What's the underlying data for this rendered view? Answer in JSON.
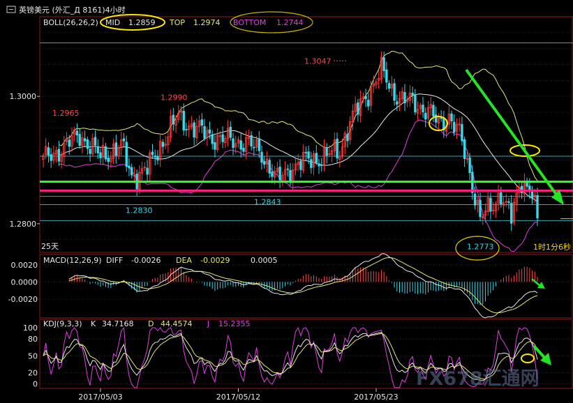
{
  "header": {
    "window_title": "英镑美元 (外汇_Д 8161)4小时",
    "period_label": "25天",
    "countdown": "1时1分6秒"
  },
  "indicators": {
    "boll": {
      "name": "BOLL(26,26,2)",
      "mid_label": "MID",
      "mid_value": "1.2859",
      "top_label": "TOP",
      "top_value": "1.2974",
      "bottom_label": "BOTTOM",
      "bottom_value": "1.2744"
    },
    "macd": {
      "name": "MACD(12,26,9)",
      "diff_label": "DIFF",
      "diff_value": "-0.0026",
      "dea_label": "DEA",
      "dea_value": "-0.0029",
      "macd_value": "0.0005"
    },
    "kdj": {
      "name": "KDJ(9,3,3)",
      "k_label": "K",
      "k_value": "34.7168",
      "d_label": "D",
      "d_value": "44.4574",
      "j_label": "J",
      "j_value": "15.2355"
    }
  },
  "colors": {
    "background": "#000000",
    "up_candle": "#ff3c3c",
    "down_candle": "#3cd8e8",
    "boll_band": "#e8e878",
    "boll_mid": "#e8e8e8",
    "boll_bottom": "#e040e0",
    "support_line": "#30ff30",
    "resistance_line": "#ff2080",
    "grid_dotted": "#7a1010",
    "highlight_circle": "#ffe800",
    "arrow": "#22e622",
    "watermark": "#5a6a90"
  },
  "watermark": "FX678汇通网",
  "chart_data": [
    {
      "type": "candlestick",
      "panel": "price",
      "y_tick_labels": [
        "1.3000",
        "1.2800"
      ],
      "y_ticks": [
        1.3,
        1.28
      ],
      "ylim": [
        1.2755,
        1.3125
      ],
      "horizontal_lines": [
        1.3084,
        1.2906,
        1.2843,
        1.283,
        1.2805
      ],
      "support_line": 1.2866,
      "resistance_line": 1.2852,
      "annotations": [
        {
          "text": "1.2965",
          "value": 1.2965,
          "kind": "high"
        },
        {
          "text": "1.2990",
          "value": 1.299,
          "kind": "high"
        },
        {
          "text": "1.3047",
          "value": 1.3047,
          "kind": "high"
        },
        {
          "text": "1.2830",
          "value": 1.283,
          "kind": "low"
        },
        {
          "text": "1.2843",
          "value": 1.2843,
          "kind": "low"
        },
        {
          "text": "1.2773",
          "value": 1.2773,
          "kind": "low"
        }
      ],
      "close_anchors": [
        [
          0,
          1.29
        ],
        [
          8,
          1.292
        ],
        [
          14,
          1.294
        ],
        [
          22,
          1.2905
        ],
        [
          30,
          1.2922
        ],
        [
          34,
          1.2875
        ],
        [
          40,
          1.2885
        ],
        [
          46,
          1.293
        ],
        [
          52,
          1.2968
        ],
        [
          58,
          1.295
        ],
        [
          66,
          1.2935
        ],
        [
          72,
          1.293
        ],
        [
          78,
          1.2928
        ],
        [
          84,
          1.291
        ],
        [
          90,
          1.2868
        ],
        [
          96,
          1.289
        ],
        [
          102,
          1.29
        ],
        [
          108,
          1.2905
        ],
        [
          114,
          1.2915
        ],
        [
          118,
          1.296
        ],
        [
          124,
          1.3
        ],
        [
          130,
          1.304
        ],
        [
          134,
          1.301
        ],
        [
          138,
          1.2995
        ],
        [
          142,
          1.299
        ],
        [
          148,
          1.2978
        ],
        [
          152,
          1.2955
        ],
        [
          156,
          1.297
        ],
        [
          160,
          1.294
        ],
        [
          164,
          1.288
        ],
        [
          168,
          1.281
        ],
        [
          172,
          1.2822
        ],
        [
          176,
          1.285
        ],
        [
          180,
          1.2808
        ],
        [
          184,
          1.287
        ],
        [
          188,
          1.2852
        ],
        [
          190,
          1.28
        ]
      ]
    },
    {
      "type": "macd",
      "panel": "macd",
      "y_tick_labels": [
        "0.0020",
        "0.0000",
        "-0.0020"
      ],
      "y_ticks": [
        0.002,
        0.0,
        -0.002
      ],
      "ylim": [
        -0.0042,
        0.0032
      ]
    },
    {
      "type": "kdj",
      "panel": "kdj",
      "y_tick_labels": [
        "100",
        "80",
        "50",
        "20",
        "0"
      ],
      "y_ticks": [
        100,
        80,
        50,
        20,
        0
      ],
      "ylim": [
        -8,
        115
      ]
    }
  ],
  "x_axis": {
    "tick_labels": [
      "2017/05/03",
      "2017/05/12",
      "2017/05/23"
    ],
    "tick_bars": [
      22,
      75,
      128
    ]
  }
}
